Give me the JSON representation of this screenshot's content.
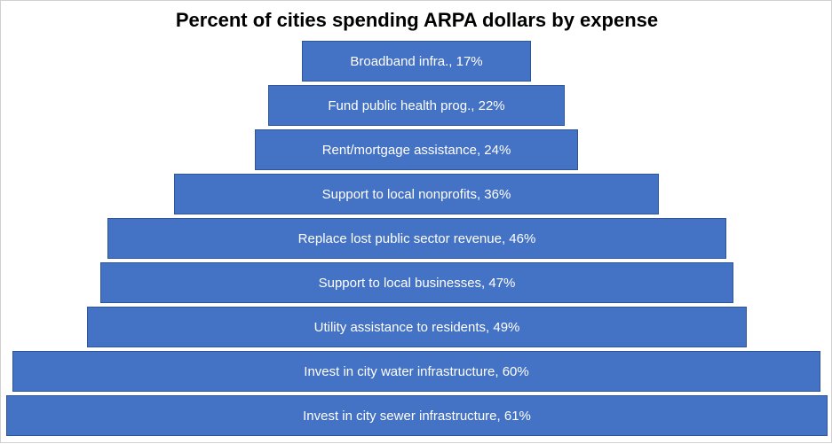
{
  "chart_data": {
    "type": "bar",
    "orientation": "horizontal-centered-funnel",
    "title": "Percent of cities spending ARPA dollars by expense",
    "categories": [
      "Broadband infra.",
      "Fund public health prog.",
      "Rent/mortgage assistance",
      "Support to local nonprofits",
      "Replace lost public sector revenue",
      "Support to local businesses",
      "Utility assistance to residents",
      "Invest in city water infrastructure",
      "Invest in city sewer infrastructure"
    ],
    "values": [
      17,
      22,
      24,
      36,
      46,
      47,
      49,
      60,
      61
    ],
    "labels": [
      "Broadband infra., 17%",
      "Fund public health prog., 22%",
      "Rent/mortgage assistance, 24%",
      "Support to local nonprofits, 36%",
      "Replace lost public sector revenue, 46%",
      "Support to local businesses, 47%",
      "Utility assistance to residents, 49%",
      "Invest in city water infrastructure, 60%",
      "Invest in city sewer infrastructure, 61%"
    ],
    "unit": "%",
    "bar_color": "#4472c4",
    "label_color": "#ffffff",
    "grid": false,
    "legend": "none"
  }
}
